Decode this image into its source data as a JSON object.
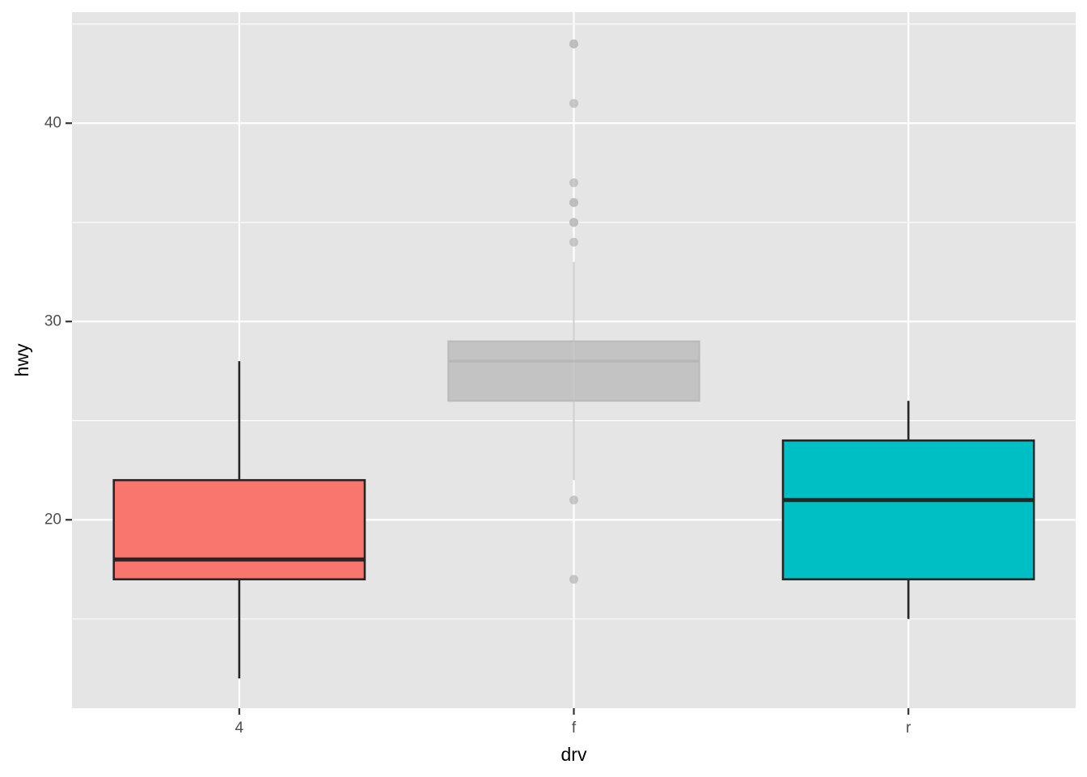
{
  "chart_data": {
    "type": "boxplot",
    "xlabel": "drv",
    "ylabel": "hwy",
    "categories": [
      "4",
      "f",
      "r"
    ],
    "ylim": [
      10.5,
      45.6
    ],
    "y_ticks": [
      20,
      30,
      40
    ],
    "grid": true,
    "legend": "none",
    "boxes": [
      {
        "category": "4",
        "whisker_low": 12,
        "q1": 17,
        "median": 18,
        "q3": 22,
        "whisker_high": 28,
        "outliers": [],
        "fill": "#F8766D",
        "faded": false
      },
      {
        "category": "f",
        "whisker_low": 22,
        "q1": 26,
        "median": 28,
        "q3": 29,
        "whisker_high": 33,
        "outliers": [
          44,
          44,
          41,
          37,
          36,
          36,
          35,
          35,
          34,
          21,
          17
        ],
        "fill": "#bebebe",
        "faded": true
      },
      {
        "category": "r",
        "whisker_low": 15,
        "q1": 17,
        "median": 21,
        "q3": 24,
        "whisker_high": 26,
        "outliers": [],
        "fill": "#00BFC4",
        "faded": false
      }
    ]
  },
  "colors": {
    "panel_background": "#e5e5e5",
    "grid_line": "#ffffff",
    "box_outline": "#262626",
    "faded_outline": "#b3b3b3"
  }
}
